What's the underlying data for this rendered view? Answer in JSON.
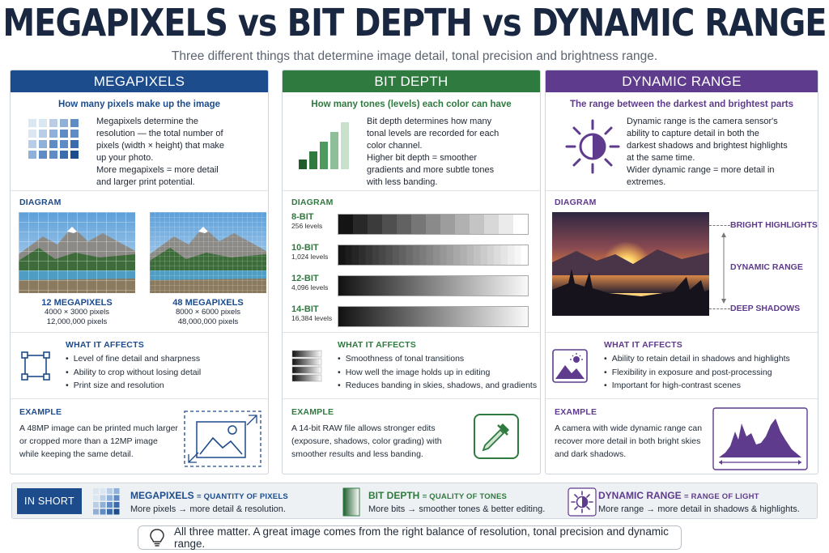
{
  "header": {
    "title": "MEGAPIXELS vs BIT DEPTH vs DYNAMIC RANGE",
    "subtitle": "Three different things that determine image detail, tonal precision and brightness range."
  },
  "colors": {
    "megapixels": "#1d4c8c",
    "bit_depth": "#2f7a3f",
    "dynamic_range": "#5e3b8c"
  },
  "megapixels": {
    "heading": "MEGAPIXELS",
    "tagline": "How many pixels make up the image",
    "description": "Megapixels determine the resolution — the total number of pixels (width × height) that make up your photo.",
    "description2": "More megapixels = more detail and larger print potential.",
    "diagram_label": "DIAGRAM",
    "left_image": {
      "title": "12 MEGAPIXELS",
      "dims": "4000 × 3000 pixels",
      "total": "12,000,000 pixels"
    },
    "right_image": {
      "title": "48 MEGAPIXELS",
      "dims": "8000 × 6000 pixels",
      "total": "48,000,000 pixels"
    },
    "affects_label": "WHAT IT AFFECTS",
    "affects": [
      "Level of fine detail and sharpness",
      "Ability to crop without losing detail",
      "Print size and resolution"
    ],
    "example_label": "EXAMPLE",
    "example": "A 48MP image can be printed much larger or cropped more than a 12MP image while keeping the same detail.",
    "icons": [
      "pixel-grid-icon",
      "crop-frame-icon",
      "image-resize-icon"
    ]
  },
  "bit_depth": {
    "heading": "BIT DEPTH",
    "tagline": "How many tones (levels) each color can have",
    "description": "Bit depth determines how many tonal levels are recorded for each color channel.",
    "description2": "Higher bit depth = smoother gradients and more subtle tones with less banding.",
    "diagram_label": "DIAGRAM",
    "gradients": [
      {
        "bits": "8-BIT",
        "levels": "256 levels",
        "steps": 13
      },
      {
        "bits": "10-BIT",
        "levels": "1,024 levels",
        "steps": 28
      },
      {
        "bits": "12-BIT",
        "levels": "4,096 levels",
        "steps": 0
      },
      {
        "bits": "14-BIT",
        "levels": "16,384 levels",
        "steps": 0
      }
    ],
    "affects_label": "WHAT IT AFFECTS",
    "affects": [
      "Smoothness of tonal transitions",
      "How well the image holds up in editing",
      "Reduces banding in skies, shadows, and gradients"
    ],
    "example_label": "EXAMPLE",
    "example": "A 14-bit RAW file allows stronger edits (exposure, shadows, color grading) with smoother results and less banding.",
    "icons": [
      "bar-steps-icon",
      "gradient-stack-icon",
      "eyedropper-icon"
    ]
  },
  "dynamic_range": {
    "heading": "DYNAMIC RANGE",
    "tagline": "The range between the darkest and brightest parts",
    "description": "Dynamic range is the camera sensor's ability to capture detail in both the darkest shadows and brightest highlights at the same time.",
    "description2": "Wider dynamic range = more detail in extremes.",
    "diagram_label": "DIAGRAM",
    "markers": {
      "top": "BRIGHT HIGHLIGHTS",
      "middle": "DYNAMIC RANGE",
      "bottom": "DEEP SHADOWS"
    },
    "affects_label": "WHAT IT AFFECTS",
    "affects": [
      "Ability to retain detail in shadows and highlights",
      "Flexibility in exposure and post-processing",
      "Important for high-contrast scenes"
    ],
    "example_label": "EXAMPLE",
    "example": "A camera with wide dynamic range can recover more detail in both bright skies and dark shadows.",
    "icons": [
      "sun-icon",
      "landscape-sun-icon",
      "histogram-icon"
    ]
  },
  "in_short": {
    "label": "IN SHORT",
    "items": [
      {
        "name": "MEGAPIXELS",
        "meaning": "= QUANTITY OF PIXELS",
        "line": "More pixels → more detail & resolution."
      },
      {
        "name": "BIT DEPTH",
        "meaning": "= QUALITY OF TONES",
        "line": "More bits → smoother tones & better editing."
      },
      {
        "name": "DYNAMIC RANGE",
        "meaning": "= RANGE OF LIGHT",
        "line": "More range → more detail in shadows & highlights."
      }
    ]
  },
  "footer": {
    "text": "All three matter. A great image comes from the right balance of resolution, tonal precision and dynamic range.",
    "icon": "lightbulb-icon"
  }
}
